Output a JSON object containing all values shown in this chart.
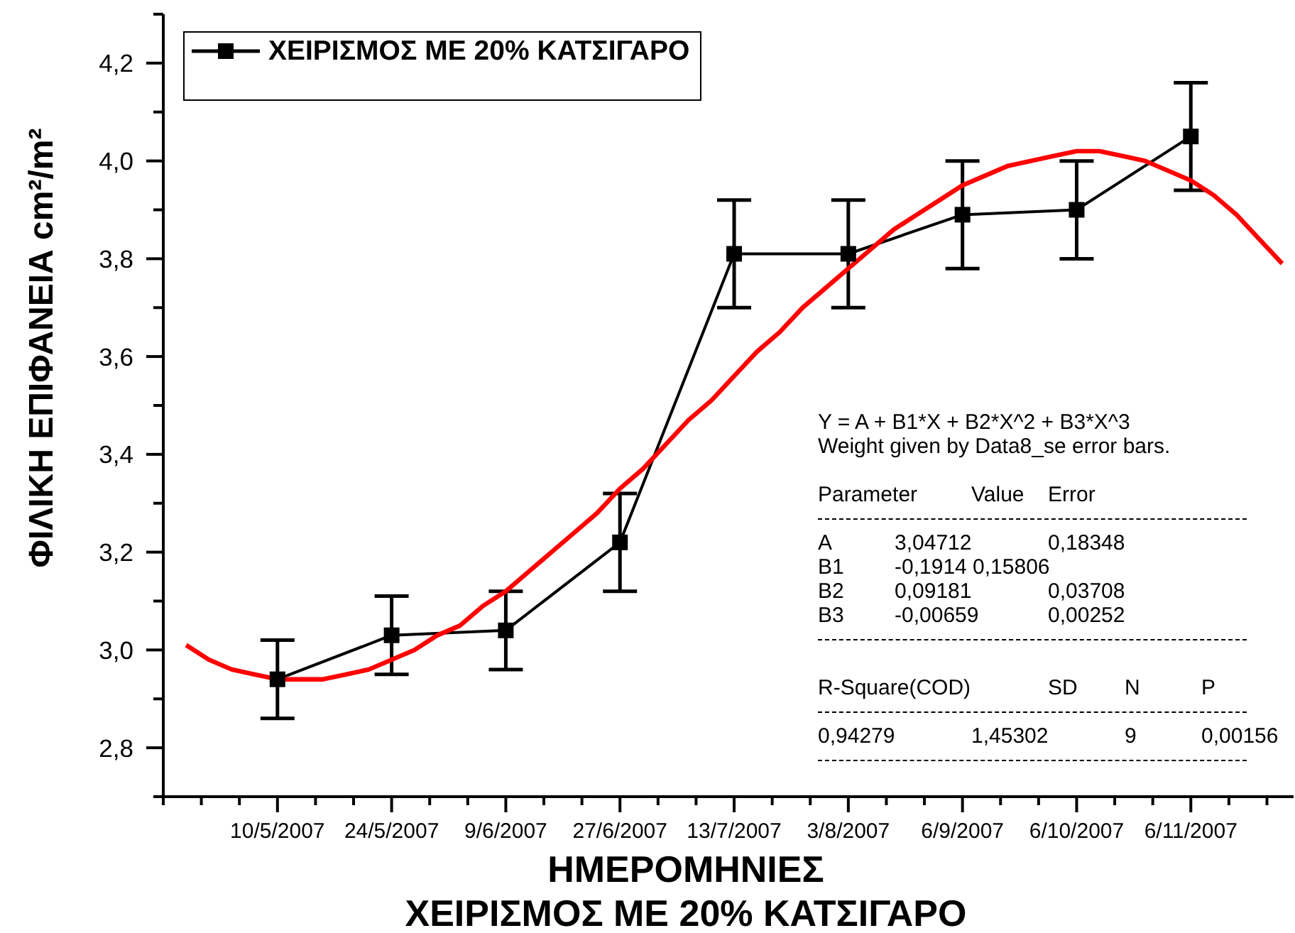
{
  "chart_data": {
    "type": "line",
    "title": "ΧΕΙΡΙΣΜΟΣ ΜΕ 20% ΚΑΤΣΙΓΑΡΟ",
    "xlabel": "ΗΜΕΡΟΜΗΝΙΕΣ",
    "ylabel": "ΦΙΛΙΚΗ ΕΠΙΦΑΝΕΙΑ cm²/m²",
    "categories": [
      null,
      null,
      null,
      null,
      null,
      "10/5/2007",
      null,
      null,
      null,
      null,
      "24/5/2007",
      null,
      null,
      null,
      null,
      "9/6/2007",
      null,
      null,
      null,
      null,
      "27/6/2007",
      null,
      null,
      null,
      null,
      "13/7/2007",
      null,
      null,
      null,
      null,
      "3/8/2007",
      null,
      null,
      null,
      null,
      "6/9/2007",
      null,
      null,
      null,
      null,
      "6/10/2007",
      null,
      null,
      null,
      null,
      "6/11/2007",
      null,
      null,
      null,
      null
    ],
    "ylim": [
      2.7,
      4.3
    ],
    "yticks": [
      {
        "value": 2.7,
        "label": null
      },
      {
        "value": 2.8,
        "label": "2,8"
      },
      {
        "value": 2.9,
        "label": null
      },
      {
        "value": 3,
        "label": "3,0"
      },
      {
        "value": 3.1,
        "label": null
      },
      {
        "value": 3.2,
        "label": "3,2"
      },
      {
        "value": 3.3,
        "label": null
      },
      {
        "value": 3.4,
        "label": "3,4"
      },
      {
        "value": 3.5,
        "label": null
      },
      {
        "value": 3.6,
        "label": "3,6"
      },
      {
        "value": 3.7,
        "label": null
      },
      {
        "value": 3.8,
        "label": "3,8"
      },
      {
        "value": 3.9,
        "label": null
      },
      {
        "value": 4,
        "label": "4,0"
      },
      {
        "value": 4.1,
        "label": null
      },
      {
        "value": 4.2,
        "label": "4,2"
      },
      {
        "value": 4.3,
        "label": null
      }
    ],
    "legend": "top left",
    "series": [
      {
        "name": "ΧΕΙΡΙΣΜΟΣ ΜΕ 20% ΚΑΤΣΙΓΑΡΟ",
        "color": "#000000",
        "marker": "square",
        "x": [
          "10/5/2007",
          "24/5/2007",
          "9/6/2007",
          "27/6/2007",
          "13/7/2007",
          "3/8/2007",
          "6/9/2007",
          "6/10/2007",
          "6/11/2007"
        ],
        "values": [
          2.94,
          3.03,
          3.04,
          3.22,
          3.81,
          3.81,
          3.89,
          3.9,
          4.05
        ],
        "errors": [
          0.08,
          0.08,
          0.08,
          0.1,
          0.11,
          0.11,
          0.11,
          0.1,
          0.11
        ]
      },
      {
        "color": "#ff0000",
        "marker": "none",
        "values": [
          null,
          3.01,
          2.98,
          2.96,
          2.95,
          2.94,
          2.94,
          2.94,
          2.95,
          2.96,
          2.98,
          3.0,
          3.03,
          3.05,
          3.09,
          3.12,
          3.16,
          3.2,
          3.24,
          3.28,
          3.33,
          3.37,
          3.42,
          3.47,
          3.51,
          3.56,
          3.61,
          3.65,
          3.7,
          3.74,
          3.78,
          3.82,
          3.86,
          3.89,
          3.92,
          3.95,
          3.97,
          3.99,
          4.0,
          4.01,
          4.02,
          4.02,
          4.01,
          4.0,
          3.98,
          3.96,
          3.93,
          3.89,
          3.84,
          3.79
        ]
      }
    ],
    "annotations": [
      "Y = A + B1*X + B2*X^2 + B3*X^3",
      "Weight given by Data8_se error bars.",
      "Parameter\t\tValue\tError",
      "A\t3,04712\t\t0,18348",
      "B1\t-0,1914 0,15806",
      "B2\t0,09181\t\t0,03708",
      "B3\t-0,00659\t\t0,00252",
      "R-Square(COD)\t\t\tSD\tN\tP",
      "0,94279\t\t1,45302\t\t9\t0,00156"
    ]
  }
}
